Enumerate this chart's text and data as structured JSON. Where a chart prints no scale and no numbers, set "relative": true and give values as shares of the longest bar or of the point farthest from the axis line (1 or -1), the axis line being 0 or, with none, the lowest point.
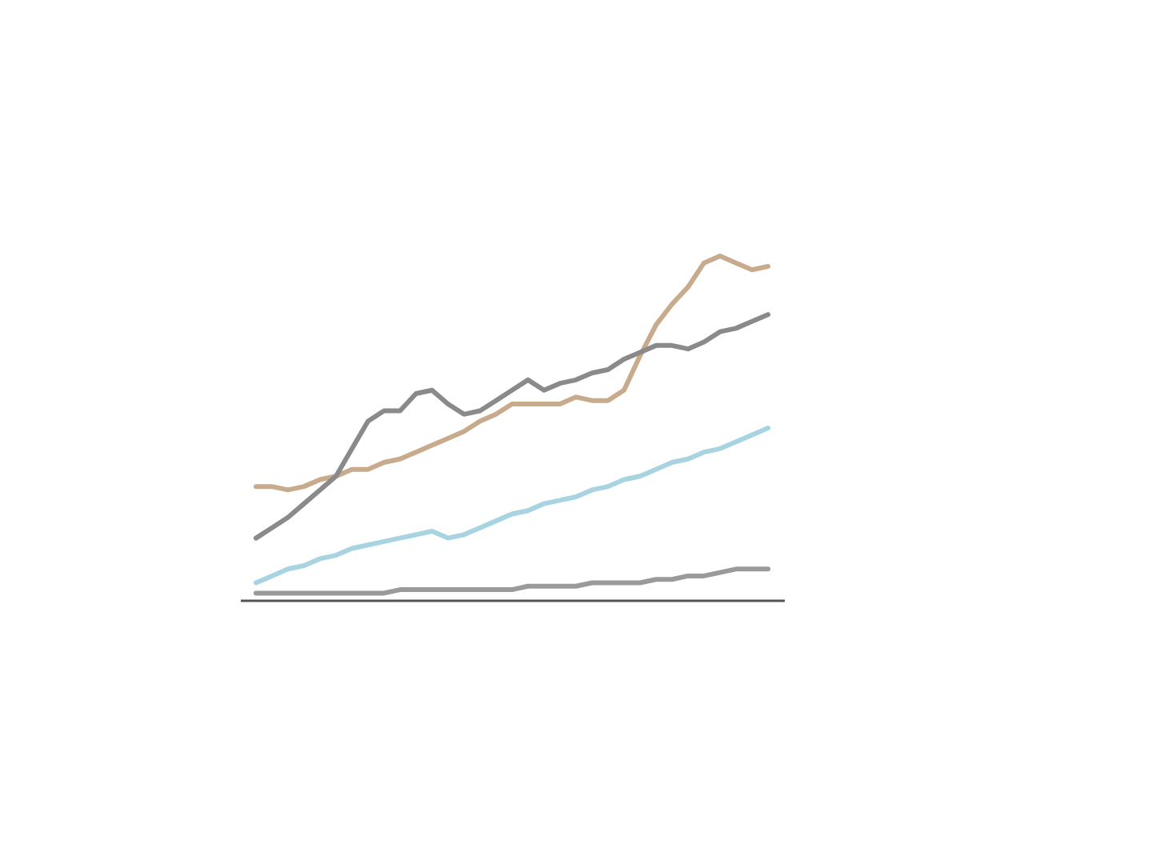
{
  "chart_data": {
    "type": "line",
    "relative": true,
    "categories": [
      null,
      null,
      null,
      null,
      null,
      null,
      null,
      null,
      null,
      null,
      null,
      null,
      null,
      null,
      null,
      null,
      null,
      null,
      null,
      null,
      null,
      null,
      null,
      null,
      null,
      null,
      null,
      null,
      null,
      null,
      null,
      null,
      null
    ],
    "series": [
      {
        "color": "#c8ab8c",
        "values": [
          0.33,
          0.33,
          0.32,
          0.33,
          0.35,
          0.36,
          0.38,
          0.38,
          0.4,
          0.41,
          0.43,
          0.45,
          0.47,
          0.49,
          0.52,
          0.54,
          0.57,
          0.57,
          0.57,
          0.57,
          0.59,
          0.58,
          0.58,
          0.61,
          0.71,
          0.8,
          0.86,
          0.91,
          0.98,
          1.0,
          0.98,
          0.96,
          0.97
        ]
      },
      {
        "color": "#8a8a8a",
        "values": [
          0.18,
          0.21,
          0.24,
          0.28,
          0.32,
          0.36,
          0.44,
          0.52,
          0.55,
          0.55,
          0.6,
          0.61,
          0.57,
          0.54,
          0.55,
          0.58,
          0.61,
          0.64,
          0.61,
          0.63,
          0.64,
          0.66,
          0.67,
          0.7,
          0.72,
          0.74,
          0.74,
          0.73,
          0.75,
          0.78,
          0.79,
          0.81,
          0.83
        ]
      },
      {
        "color": "#a8d4e2",
        "values": [
          0.05,
          0.07,
          0.09,
          0.1,
          0.12,
          0.13,
          0.15,
          0.16,
          0.17,
          0.18,
          0.19,
          0.2,
          0.18,
          0.19,
          0.21,
          0.23,
          0.25,
          0.26,
          0.28,
          0.29,
          0.3,
          0.32,
          0.33,
          0.35,
          0.36,
          0.38,
          0.4,
          0.41,
          0.43,
          0.44,
          0.46,
          0.48,
          0.5
        ]
      },
      {
        "color": "#9a9a9a",
        "values": [
          0.02,
          0.02,
          0.02,
          0.02,
          0.02,
          0.02,
          0.02,
          0.02,
          0.02,
          0.03,
          0.03,
          0.03,
          0.03,
          0.03,
          0.03,
          0.03,
          0.03,
          0.04,
          0.04,
          0.04,
          0.04,
          0.05,
          0.05,
          0.05,
          0.05,
          0.06,
          0.06,
          0.07,
          0.07,
          0.08,
          0.09,
          0.09,
          0.09
        ]
      }
    ]
  }
}
